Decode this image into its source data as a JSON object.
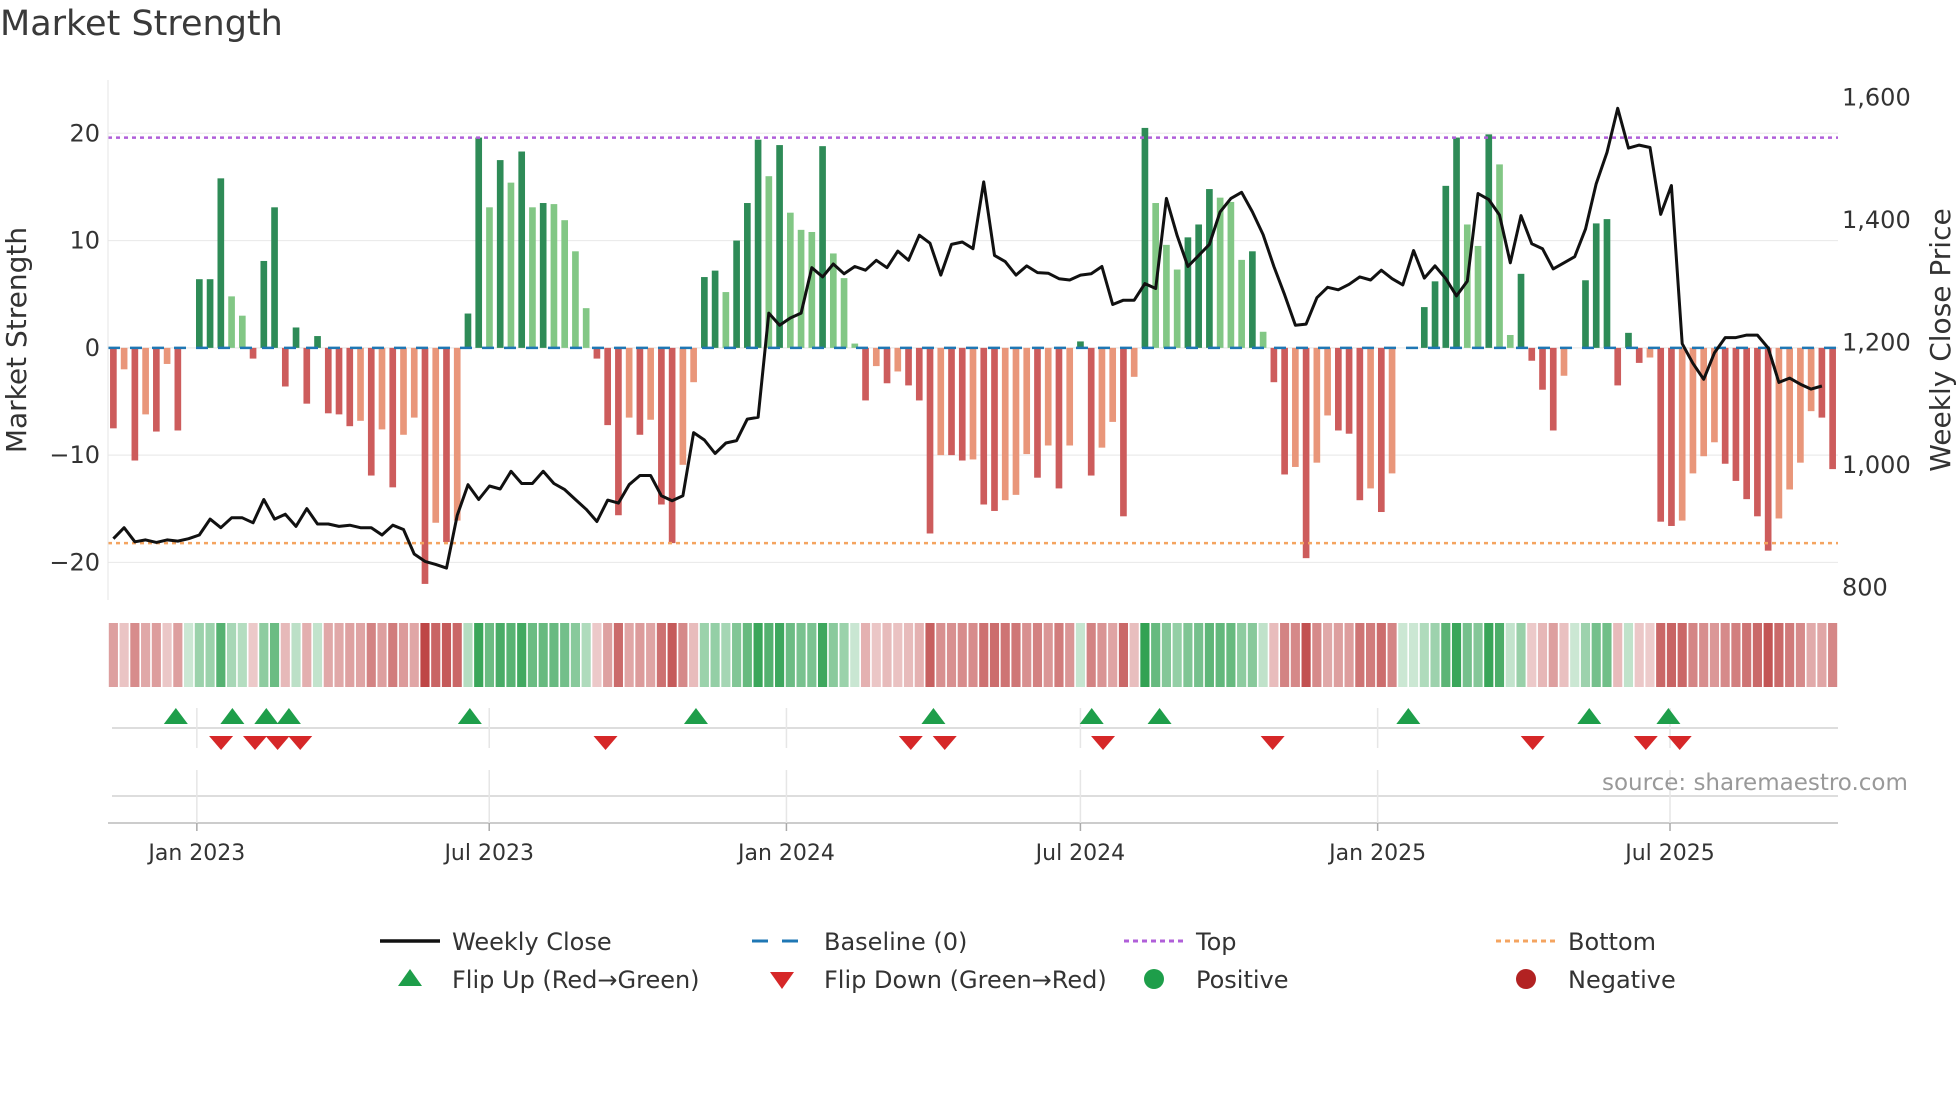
{
  "title": "Market Strength",
  "source": "source: sharemaestro.com",
  "colors": {
    "pos_strong": "#2e8b57",
    "pos_weak": "#82c785",
    "neg_strong": "#cd5c5c",
    "neg_weak": "#e9967a",
    "close": "#111111",
    "baseline": "#1f77b4",
    "top": "#b05fd9",
    "bottom": "#f4a460",
    "flip_up": "#1e9e4a",
    "flip_down": "#d62728",
    "positive": "#1e9e4a",
    "negative": "#b22222"
  },
  "legend": {
    "close": "Weekly Close",
    "baseline": "Baseline (0)",
    "top": "Top",
    "bottom": "Bottom",
    "flip_up": "Flip Up (Red→Green)",
    "flip_down": "Flip Down (Green→Red)",
    "positive": "Positive",
    "negative": "Negative"
  },
  "chart_data": {
    "type": "bar",
    "x_start": "2022-11-07",
    "x_end": "2025-10-13",
    "bar_period_days": 7,
    "xticks": [
      "Jan 2023",
      "Jul 2023",
      "Jan 2024",
      "Jul 2024",
      "Jan 2025",
      "Jul 2025"
    ],
    "xtick_dates": [
      "2023-01-01",
      "2023-07-01",
      "2024-01-01",
      "2024-07-01",
      "2025-01-01",
      "2025-07-01"
    ],
    "ylabel_left": "Market Strength",
    "ylabel_right": "Weekly Close Price",
    "ylim_left": [
      -23.5,
      24.5
    ],
    "ylim_right": [
      780,
      1620
    ],
    "yticks_left": [
      20,
      10,
      0,
      -10,
      -20
    ],
    "ytick_labels_left": [
      "20",
      "10",
      "0",
      "−10",
      "−20"
    ],
    "yticks_right": [
      1600,
      1400,
      1200,
      1000,
      800
    ],
    "ytick_labels_right": [
      "1,600",
      "1,400",
      "1,200",
      "1,000",
      "800"
    ],
    "top_line": 19.6,
    "bottom_line": -18.2,
    "strength": [
      -7.5,
      -2,
      -10.5,
      -6.2,
      -7.8,
      -1.5,
      -7.7,
      0,
      6.4,
      6.4,
      15.8,
      4.8,
      3,
      -1,
      8.1,
      13.1,
      -3.6,
      1.9,
      -5.2,
      1.1,
      -6.1,
      -6.2,
      -7.3,
      -6.8,
      -11.9,
      -7.6,
      -13,
      -8.1,
      -6.5,
      -22,
      -16.3,
      -18.1,
      -16.1,
      3.2,
      19.6,
      13.1,
      17.5,
      15.4,
      18.3,
      13.1,
      13.5,
      13.4,
      11.9,
      9,
      3.7,
      -1,
      -7.2,
      -15.6,
      -6.5,
      -8.1,
      -6.7,
      -14.6,
      -18.2,
      -10.9,
      -3.2,
      6.6,
      7.2,
      5.2,
      10,
      13.5,
      19.4,
      16,
      18.9,
      12.6,
      11,
      10.8,
      18.8,
      8.8,
      6.5,
      0.4,
      -4.9,
      -1.7,
      -3.3,
      -2.2,
      -3.5,
      -4.9,
      -17.3,
      -10,
      -10,
      -10.5,
      -10.4,
      -14.6,
      -15.2,
      -14.2,
      -13.7,
      -9.9,
      -12.1,
      -9.1,
      -13.1,
      -9.1,
      0.6,
      -11.9,
      -9.3,
      -6.9,
      -15.7,
      -2.7,
      20.5,
      13.5,
      9.6,
      7.3,
      10.3,
      11.5,
      14.8,
      14,
      13.6,
      8.2,
      9,
      1.5,
      -3.2,
      -11.8,
      -11.1,
      -19.6,
      -10.7,
      -6.3,
      -7.7,
      -8,
      -14.2,
      -13.1,
      -15.3,
      -11.7,
      0,
      0,
      3.8,
      6.2,
      15.1,
      19.6,
      11.5,
      9.5,
      19.9,
      17.1,
      1.2,
      6.9,
      -1.2,
      -3.9,
      -7.7,
      -2.6,
      0,
      6.3,
      11.6,
      12,
      -3.5,
      1.4,
      -1.4,
      -0.9,
      -16.2,
      -16.6,
      -16.1,
      -11.7,
      -10.1,
      -8.8,
      -10.8,
      -12.4,
      -14.1,
      -15.7,
      -18.9,
      -15.9,
      -13.2,
      -10.7,
      -5.9,
      -6.5,
      -11.3
    ],
    "weekly_close": [
      880,
      898,
      875,
      878,
      874,
      878,
      876,
      880,
      886,
      912,
      898,
      914,
      914,
      906,
      944,
      912,
      920,
      900,
      929,
      904,
      904,
      900,
      902,
      898,
      898,
      886,
      902,
      895,
      855,
      843,
      838,
      832,
      918,
      968,
      944,
      966,
      961,
      990,
      970,
      970,
      990,
      970,
      960,
      944,
      928,
      908,
      943,
      938,
      968,
      983,
      983,
      950,
      942,
      950,
      1053,
      1041,
      1019,
      1036,
      1040,
      1075,
      1078,
      1248,
      1228,
      1240,
      1248,
      1322,
      1307,
      1328,
      1312,
      1324,
      1318,
      1334,
      1322,
      1349,
      1334,
      1375,
      1362,
      1310,
      1360,
      1364,
      1353,
      1462,
      1342,
      1332,
      1310,
      1325,
      1314,
      1313,
      1304,
      1302,
      1310,
      1312,
      1324,
      1262,
      1269,
      1269,
      1296,
      1288,
      1435,
      1374,
      1324,
      1342,
      1360,
      1413,
      1435,
      1445,
      1413,
      1376,
      1324,
      1278,
      1228,
      1230,
      1273,
      1290,
      1286,
      1295,
      1307,
      1302,
      1318,
      1304,
      1294,
      1350,
      1305,
      1325,
      1304,
      1276,
      1300,
      1443,
      1433,
      1408,
      1330,
      1407,
      1361,
      1353,
      1320,
      1330,
      1340,
      1385,
      1459,
      1510,
      1582,
      1517,
      1522,
      1518,
      1409,
      1456,
      1198,
      1166,
      1140,
      1183,
      1208,
      1208,
      1212,
      1212,
      1191,
      1135,
      1142,
      1132,
      1124,
      1129
    ],
    "flip_up_dates": [
      "2022-12-19",
      "2023-01-23",
      "2023-02-13",
      "2023-02-27",
      "2023-06-19",
      "2023-11-06",
      "2024-04-01",
      "2024-07-08",
      "2024-08-19",
      "2025-01-20",
      "2025-05-12",
      "2025-06-30"
    ],
    "flip_down_dates": [
      "2023-01-16",
      "2023-02-06",
      "2023-02-20",
      "2023-03-06",
      "2023-09-11",
      "2024-03-18",
      "2024-04-08",
      "2024-07-15",
      "2024-10-28",
      "2025-04-07",
      "2025-06-16",
      "2025-07-07"
    ]
  }
}
